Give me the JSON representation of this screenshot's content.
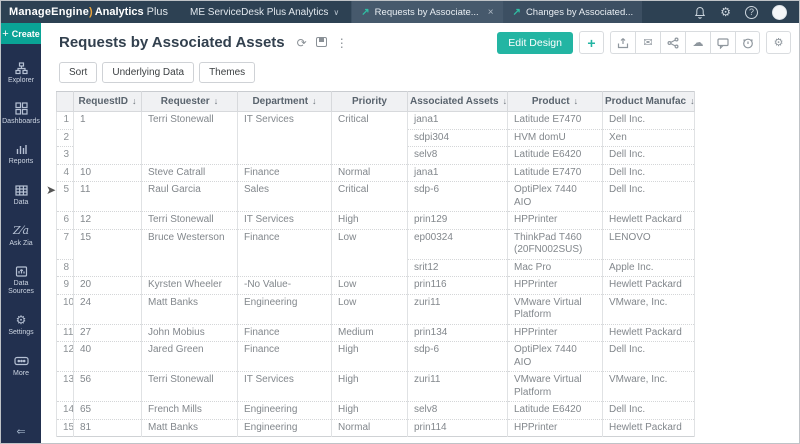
{
  "colors": {
    "accent_teal": "#23b5a3",
    "navbar_bg": "#2d4153",
    "sidebar_bg": "#22304f",
    "create_teal": "#0aa396",
    "header_bg": "#f0f1f3"
  },
  "topbar": {
    "brand": {
      "manageengine": "ManageEngine",
      "analytics": "Analytics",
      "plus": "Plus"
    },
    "workspace_label": "ME ServiceDesk Plus Analytics",
    "tabs": [
      {
        "label": "Requests by Associate...",
        "active": true,
        "closable": true
      },
      {
        "label": "Changes by Associated...",
        "active": false,
        "closable": false
      }
    ],
    "icons": {
      "bell": "bell",
      "gear": "⚙",
      "help": "?",
      "avatar": "user-avatar"
    }
  },
  "sidebar": {
    "create_label": "Create",
    "create_plus": "+",
    "items": [
      {
        "label": "Explorer"
      },
      {
        "label": "Dashboards"
      },
      {
        "label": "Reports"
      },
      {
        "label": "Data"
      },
      {
        "label": "Ask Zia"
      },
      {
        "label": "Data Sources"
      },
      {
        "label": "Settings"
      },
      {
        "label": "More"
      }
    ],
    "collapse_glyph": "⇐"
  },
  "header": {
    "title": "Requests by Associated Assets",
    "refresh_glyph": "⟳",
    "kebab_glyph": "⋮",
    "edit_design_label": "Edit Design",
    "add_label": "+",
    "email_glyph": "✉",
    "cloud_glyph": "☁",
    "gear_glyph": "⚙"
  },
  "toolbar": {
    "buttons": [
      "Sort",
      "Underlying Data",
      "Themes"
    ]
  },
  "table": {
    "columns": [
      {
        "label": "",
        "sortable": false,
        "width": 17
      },
      {
        "label": "RequestID",
        "sortable": true,
        "width": 68
      },
      {
        "label": "Requester",
        "sortable": true,
        "width": 96
      },
      {
        "label": "Department",
        "sortable": true,
        "width": 94
      },
      {
        "label": "Priority",
        "sortable": false,
        "width": 76
      },
      {
        "label": "Associated Assets",
        "sortable": true,
        "width": 100
      },
      {
        "label": "Product",
        "sortable": true,
        "width": 95
      },
      {
        "label": "Product Manufac",
        "sortable": true,
        "width": 92
      }
    ],
    "sort_glyph": "↓",
    "rows": [
      {
        "n": 1,
        "id": "1",
        "requester": "Terri Stonewall",
        "department": "IT Services",
        "priority": "Critical",
        "span": 3,
        "asset": "jana1",
        "product": "Latitude E7470",
        "manufacturer": "Dell Inc."
      },
      {
        "n": 2,
        "cont": true,
        "asset": "sdpi304",
        "product": "HVM domU",
        "manufacturer": "Xen"
      },
      {
        "n": 3,
        "cont": true,
        "asset": "selv8",
        "product": "Latitude E6420",
        "manufacturer": "Dell Inc."
      },
      {
        "n": 4,
        "id": "10",
        "requester": "Steve Catrall",
        "department": "Finance",
        "priority": "Normal",
        "span": 1,
        "asset": "jana1",
        "product": "Latitude E7470",
        "manufacturer": "Dell Inc."
      },
      {
        "n": 5,
        "id": "11",
        "requester": "Raul Garcia",
        "department": "Sales",
        "priority": "Critical",
        "span": 1,
        "asset": "sdp-6",
        "product": "OptiPlex 7440 AIO",
        "manufacturer": "Dell Inc."
      },
      {
        "n": 6,
        "id": "12",
        "requester": "Terri Stonewall",
        "department": "IT Services",
        "priority": "High",
        "span": 1,
        "asset": "prin129",
        "product": "HPPrinter",
        "manufacturer": "Hewlett Packard"
      },
      {
        "n": 7,
        "id": "15",
        "requester": "Bruce Westerson",
        "department": "Finance",
        "priority": "Low",
        "span": 2,
        "asset": "ep00324",
        "product": "ThinkPad T460 (20FN002SUS)",
        "manufacturer": "LENOVO"
      },
      {
        "n": 8,
        "cont": true,
        "asset": "srit12",
        "product": "Mac Pro",
        "manufacturer": "Apple Inc."
      },
      {
        "n": 9,
        "id": "20",
        "requester": "Kyrsten Wheeler",
        "department": "-No Value-",
        "priority": "Low",
        "span": 1,
        "asset": "prin116",
        "product": "HPPrinter",
        "manufacturer": "Hewlett Packard"
      },
      {
        "n": 10,
        "id": "24",
        "requester": "Matt Banks",
        "department": "Engineering",
        "priority": "Low",
        "span": 1,
        "asset": "zuri11",
        "product": "VMware Virtual Platform",
        "manufacturer": "VMware, Inc."
      },
      {
        "n": 11,
        "id": "27",
        "requester": "John Mobius",
        "department": "Finance",
        "priority": "Medium",
        "span": 1,
        "asset": "prin134",
        "product": "HPPrinter",
        "manufacturer": "Hewlett Packard"
      },
      {
        "n": 12,
        "id": "40",
        "requester": "Jared Green",
        "department": "Finance",
        "priority": "High",
        "span": 1,
        "asset": "sdp-6",
        "product": "OptiPlex 7440 AIO",
        "manufacturer": "Dell Inc."
      },
      {
        "n": 13,
        "id": "56",
        "requester": "Terri Stonewall",
        "department": "IT Services",
        "priority": "High",
        "span": 1,
        "asset": "zuri11",
        "product": "VMware Virtual Platform",
        "manufacturer": "VMware, Inc."
      },
      {
        "n": 14,
        "id": "65",
        "requester": "French Mills",
        "department": "Engineering",
        "priority": "High",
        "span": 1,
        "asset": "selv8",
        "product": "Latitude E6420",
        "manufacturer": "Dell Inc."
      },
      {
        "n": 15,
        "id": "81",
        "requester": "Matt Banks",
        "department": "Engineering",
        "priority": "Normal",
        "span": 1,
        "asset": "prin114",
        "product": "HPPrinter",
        "manufacturer": "Hewlett Packard"
      }
    ]
  }
}
